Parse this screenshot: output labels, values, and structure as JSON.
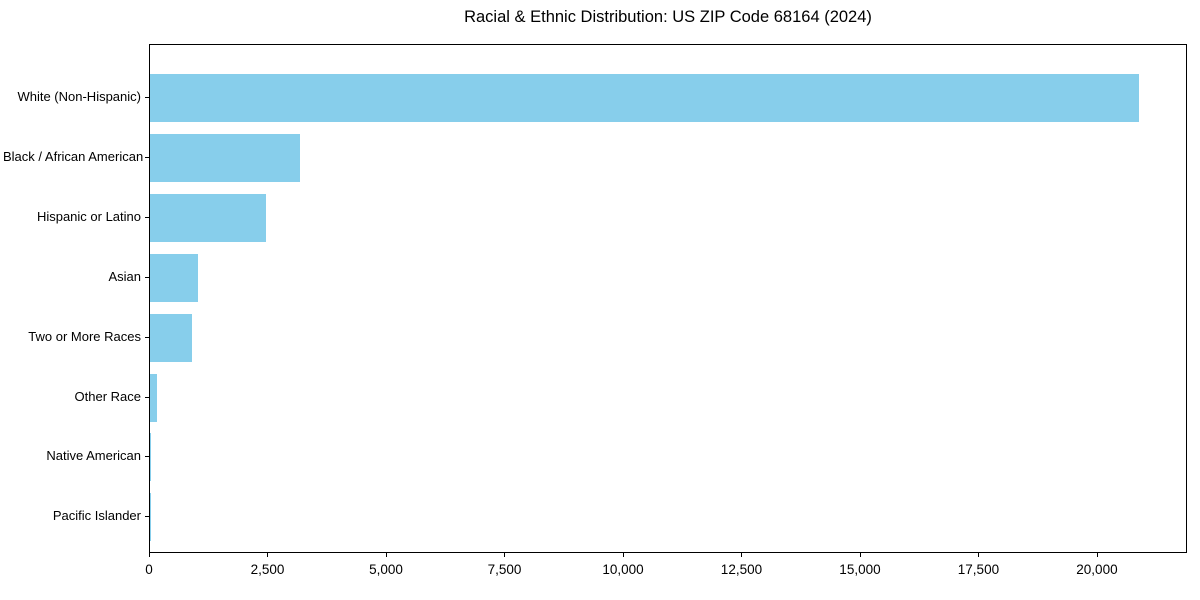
{
  "chart_data": {
    "type": "bar",
    "orientation": "horizontal",
    "title": "Racial & Ethnic Distribution: US ZIP Code 68164 (2024)",
    "categories": [
      "White (Non-Hispanic)",
      "Black / African American",
      "Hispanic or Latino",
      "Asian",
      "Two or More Races",
      "Other Race",
      "Native American",
      "Pacific Islander"
    ],
    "values": [
      20860,
      3170,
      2450,
      1010,
      890,
      140,
      30,
      5
    ],
    "xlabel": "",
    "ylabel": "",
    "xlim": [
      0,
      21900
    ],
    "xticks": [
      0,
      2500,
      5000,
      7500,
      10000,
      12500,
      15000,
      17500,
      20000
    ],
    "xtick_labels": [
      "0",
      "2,500",
      "5,000",
      "7,500",
      "10,000",
      "12,500",
      "15,000",
      "17,500",
      "20,000"
    ],
    "grid": false,
    "legend": "none",
    "bar_color": "#87CEEB",
    "background_color": "#FFFFFF",
    "spine_color": "#000000",
    "text_color": "#000000"
  }
}
